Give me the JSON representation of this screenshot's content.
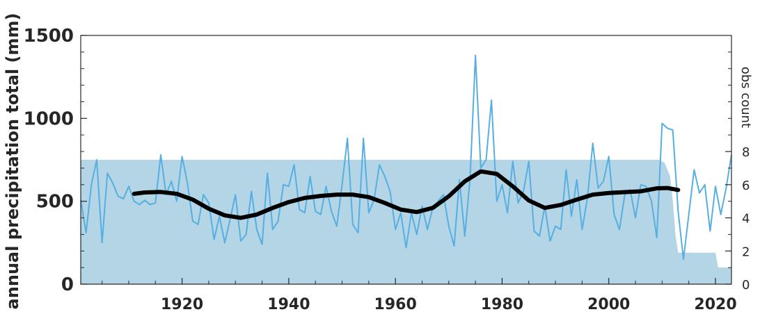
{
  "chart_data": {
    "type": "line",
    "ylabel": "annual precipitation total (mm)",
    "ylabel_right": "obs count",
    "xlim": [
      1901,
      2023
    ],
    "ylim": [
      0,
      1500
    ],
    "ylim_right": [
      0,
      15
    ],
    "x_ticks": [
      1920,
      1940,
      1960,
      1980,
      2000,
      2020
    ],
    "y_ticks": [
      0,
      500,
      1000,
      1500
    ],
    "y_ticks_right": [
      0,
      2,
      4,
      6,
      8
    ],
    "grid": false,
    "colors": {
      "annual": "#56aee2",
      "smooth": "#000000",
      "obs": "#b3d5e5"
    },
    "series": [
      {
        "role": "annual",
        "x": [
          1901,
          1902,
          1903,
          1904,
          1905,
          1906,
          1907,
          1908,
          1909,
          1910,
          1911,
          1912,
          1913,
          1914,
          1915,
          1916,
          1917,
          1918,
          1919,
          1920,
          1921,
          1922,
          1923,
          1924,
          1925,
          1926,
          1927,
          1928,
          1929,
          1930,
          1931,
          1932,
          1933,
          1934,
          1935,
          1936,
          1937,
          1938,
          1939,
          1940,
          1941,
          1942,
          1943,
          1944,
          1945,
          1946,
          1947,
          1948,
          1949,
          1950,
          1951,
          1952,
          1953,
          1954,
          1955,
          1956,
          1957,
          1958,
          1959,
          1960,
          1961,
          1962,
          1963,
          1964,
          1965,
          1966,
          1967,
          1968,
          1969,
          1970,
          1971,
          1972,
          1973,
          1974,
          1975,
          1976,
          1977,
          1978,
          1979,
          1980,
          1981,
          1982,
          1983,
          1984,
          1985,
          1986,
          1987,
          1988,
          1989,
          1990,
          1991,
          1992,
          1993,
          1994,
          1995,
          1996,
          1997,
          1998,
          1999,
          2000,
          2001,
          2002,
          2003,
          2004,
          2005,
          2006,
          2007,
          2008,
          2009,
          2010,
          2011,
          2012,
          2013,
          2014,
          2015,
          2016,
          2017,
          2018,
          2019,
          2020,
          2021,
          2022,
          2023
        ],
        "values": [
          510,
          310,
          600,
          750,
          250,
          670,
          610,
          530,
          515,
          590,
          500,
          480,
          505,
          480,
          490,
          780,
          540,
          620,
          500,
          770,
          610,
          380,
          360,
          540,
          490,
          270,
          410,
          250,
          390,
          540,
          260,
          300,
          560,
          330,
          240,
          670,
          330,
          380,
          600,
          590,
          720,
          450,
          430,
          650,
          440,
          420,
          590,
          440,
          350,
          600,
          880,
          360,
          310,
          880,
          430,
          510,
          720,
          650,
          560,
          330,
          430,
          220,
          430,
          300,
          470,
          330,
          460,
          500,
          540,
          350,
          230,
          630,
          290,
          640,
          1380,
          700,
          750,
          1110,
          500,
          600,
          430,
          740,
          490,
          560,
          740,
          320,
          290,
          470,
          260,
          350,
          330,
          690,
          410,
          630,
          330,
          520,
          850,
          580,
          620,
          770,
          420,
          330,
          540,
          570,
          400,
          600,
          590,
          500,
          280,
          970,
          940,
          930,
          440,
          150,
          420,
          690,
          550,
          600,
          320,
          590,
          420,
          580,
          780
        ]
      },
      {
        "role": "smooth",
        "x": [
          1911,
          1913,
          1916,
          1919,
          1922,
          1925,
          1928,
          1931,
          1934,
          1937,
          1940,
          1943,
          1946,
          1949,
          1952,
          1955,
          1958,
          1961,
          1964,
          1967,
          1970,
          1973,
          1976,
          1979,
          1982,
          1985,
          1988,
          1991,
          1994,
          1997,
          2000,
          2003,
          2006,
          2009,
          2011,
          2013
        ],
        "values": [
          545,
          553,
          556,
          545,
          510,
          455,
          415,
          400,
          420,
          460,
          495,
          520,
          532,
          540,
          540,
          525,
          490,
          450,
          435,
          460,
          530,
          620,
          680,
          665,
          590,
          505,
          460,
          478,
          510,
          540,
          550,
          555,
          560,
          578,
          580,
          568
        ]
      }
    ],
    "obs_count": {
      "x": [
        1901,
        2009.5,
        2010.5,
        2011.5,
        2012,
        2012.5,
        2013,
        2019,
        2020,
        2020.5,
        2023
      ],
      "values": [
        7.5,
        7.5,
        7.3,
        6.5,
        5,
        3,
        1.9,
        1.9,
        1.9,
        1,
        1
      ]
    }
  }
}
